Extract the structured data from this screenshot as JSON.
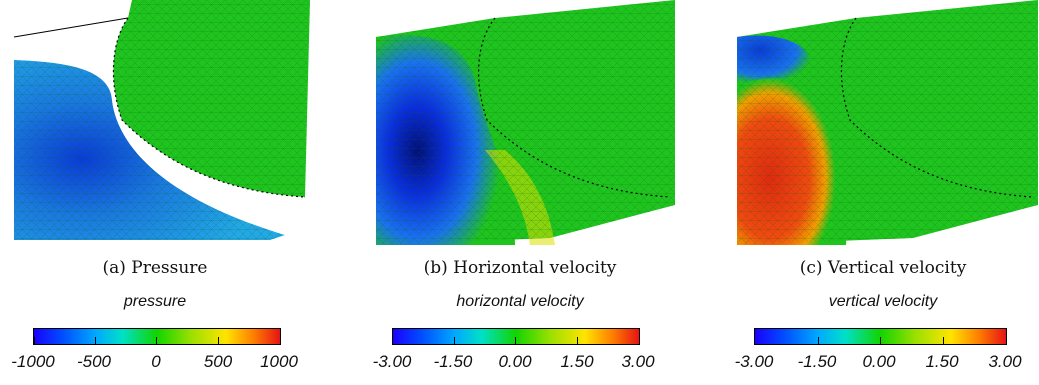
{
  "panels": [
    {
      "caption": "(a) Pressure",
      "colorbar": {
        "title": "pressure",
        "labels": [
          "-1000",
          "-500",
          "0",
          "500",
          "1000"
        ]
      }
    },
    {
      "caption": "(b) Horizontal velocity",
      "colorbar": {
        "title": "horizontal velocity",
        "labels": [
          "-3.00",
          "-1.50",
          "0.00",
          "1.50",
          "3.00"
        ]
      }
    },
    {
      "caption": "(c) Vertical velocity",
      "colorbar": {
        "title": "vertical velocity",
        "labels": [
          "-3.00",
          "-1.50",
          "0.00",
          "1.50",
          "3.00"
        ]
      }
    }
  ],
  "colors": {
    "mesh_green": "#1fc41f",
    "low_blue": "#0a3cd8",
    "mid_cyan": "#1e9ee0",
    "high_red": "#e02a10"
  }
}
